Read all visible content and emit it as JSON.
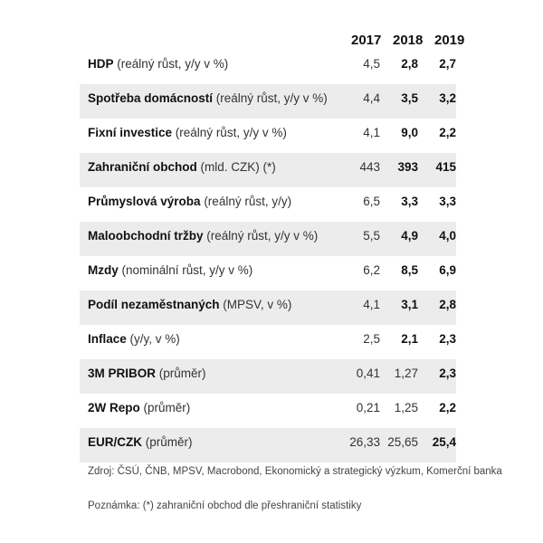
{
  "header": {
    "years": [
      "2017",
      "2018",
      "2019"
    ]
  },
  "rows": [
    {
      "name": "HDP",
      "unit": " (reálný růst, y/y v %)",
      "v2017": "4,5",
      "v2018": "2,8",
      "v2019": "2,7"
    },
    {
      "name": "Spotřeba domácností",
      "unit": " (reálný růst, y/y v %)",
      "v2017": "4,4",
      "v2018": "3,5",
      "v2019": "3,2"
    },
    {
      "name": "Fixní investice",
      "unit": " (reálný růst, y/y v %)",
      "v2017": "4,1",
      "v2018": "9,0",
      "v2019": "2,2"
    },
    {
      "name": "Zahraniční obchod",
      "unit": " (mld. CZK) (*)",
      "v2017": "443",
      "v2018": "393",
      "v2019": "415"
    },
    {
      "name": "Průmyslová výroba",
      "unit": " (reálný růst, y/y)",
      "v2017": "6,5",
      "v2018": "3,3",
      "v2019": "3,3"
    },
    {
      "name": "Maloobchodní tržby",
      "unit": " (reálný růst, y/y v %)",
      "v2017": "5,5",
      "v2018": "4,9",
      "v2019": "4,0"
    },
    {
      "name": "Mzdy",
      "unit": " (nominální růst, y/y v %)",
      "v2017": "6,2",
      "v2018": "8,5",
      "v2019": "6,9"
    },
    {
      "name": "Podíl nezaměstnaných",
      "unit": " (MPSV, v %)",
      "v2017": "4,1",
      "v2018": "3,1",
      "v2019": "2,8"
    },
    {
      "name": "Inflace",
      "unit": " (y/y, v %)",
      "v2017": "2,5",
      "v2018": "2,1",
      "v2019": "2,3"
    },
    {
      "name": "3M PRIBOR",
      "unit": " (průměr)",
      "v2017": "0,41",
      "v2018": "1,27",
      "v2019": "2,3"
    },
    {
      "name": "2W Repo",
      "unit": " (průměr)",
      "v2017": "0,21",
      "v2018": "1,25",
      "v2019": "2,2"
    },
    {
      "name": "EUR/CZK",
      "unit": " (průměr)",
      "v2017": "26,33",
      "v2018": "25,65",
      "v2019": "25,4"
    }
  ],
  "footer": {
    "source": "Zdroj: ČSÚ, ČNB, MPSV, Macrobond, Ekonomický a strategický výzkum, Komerční banka",
    "note": "Poznámka: (*) zahraniční obchod dle přeshraniční statistiky"
  }
}
